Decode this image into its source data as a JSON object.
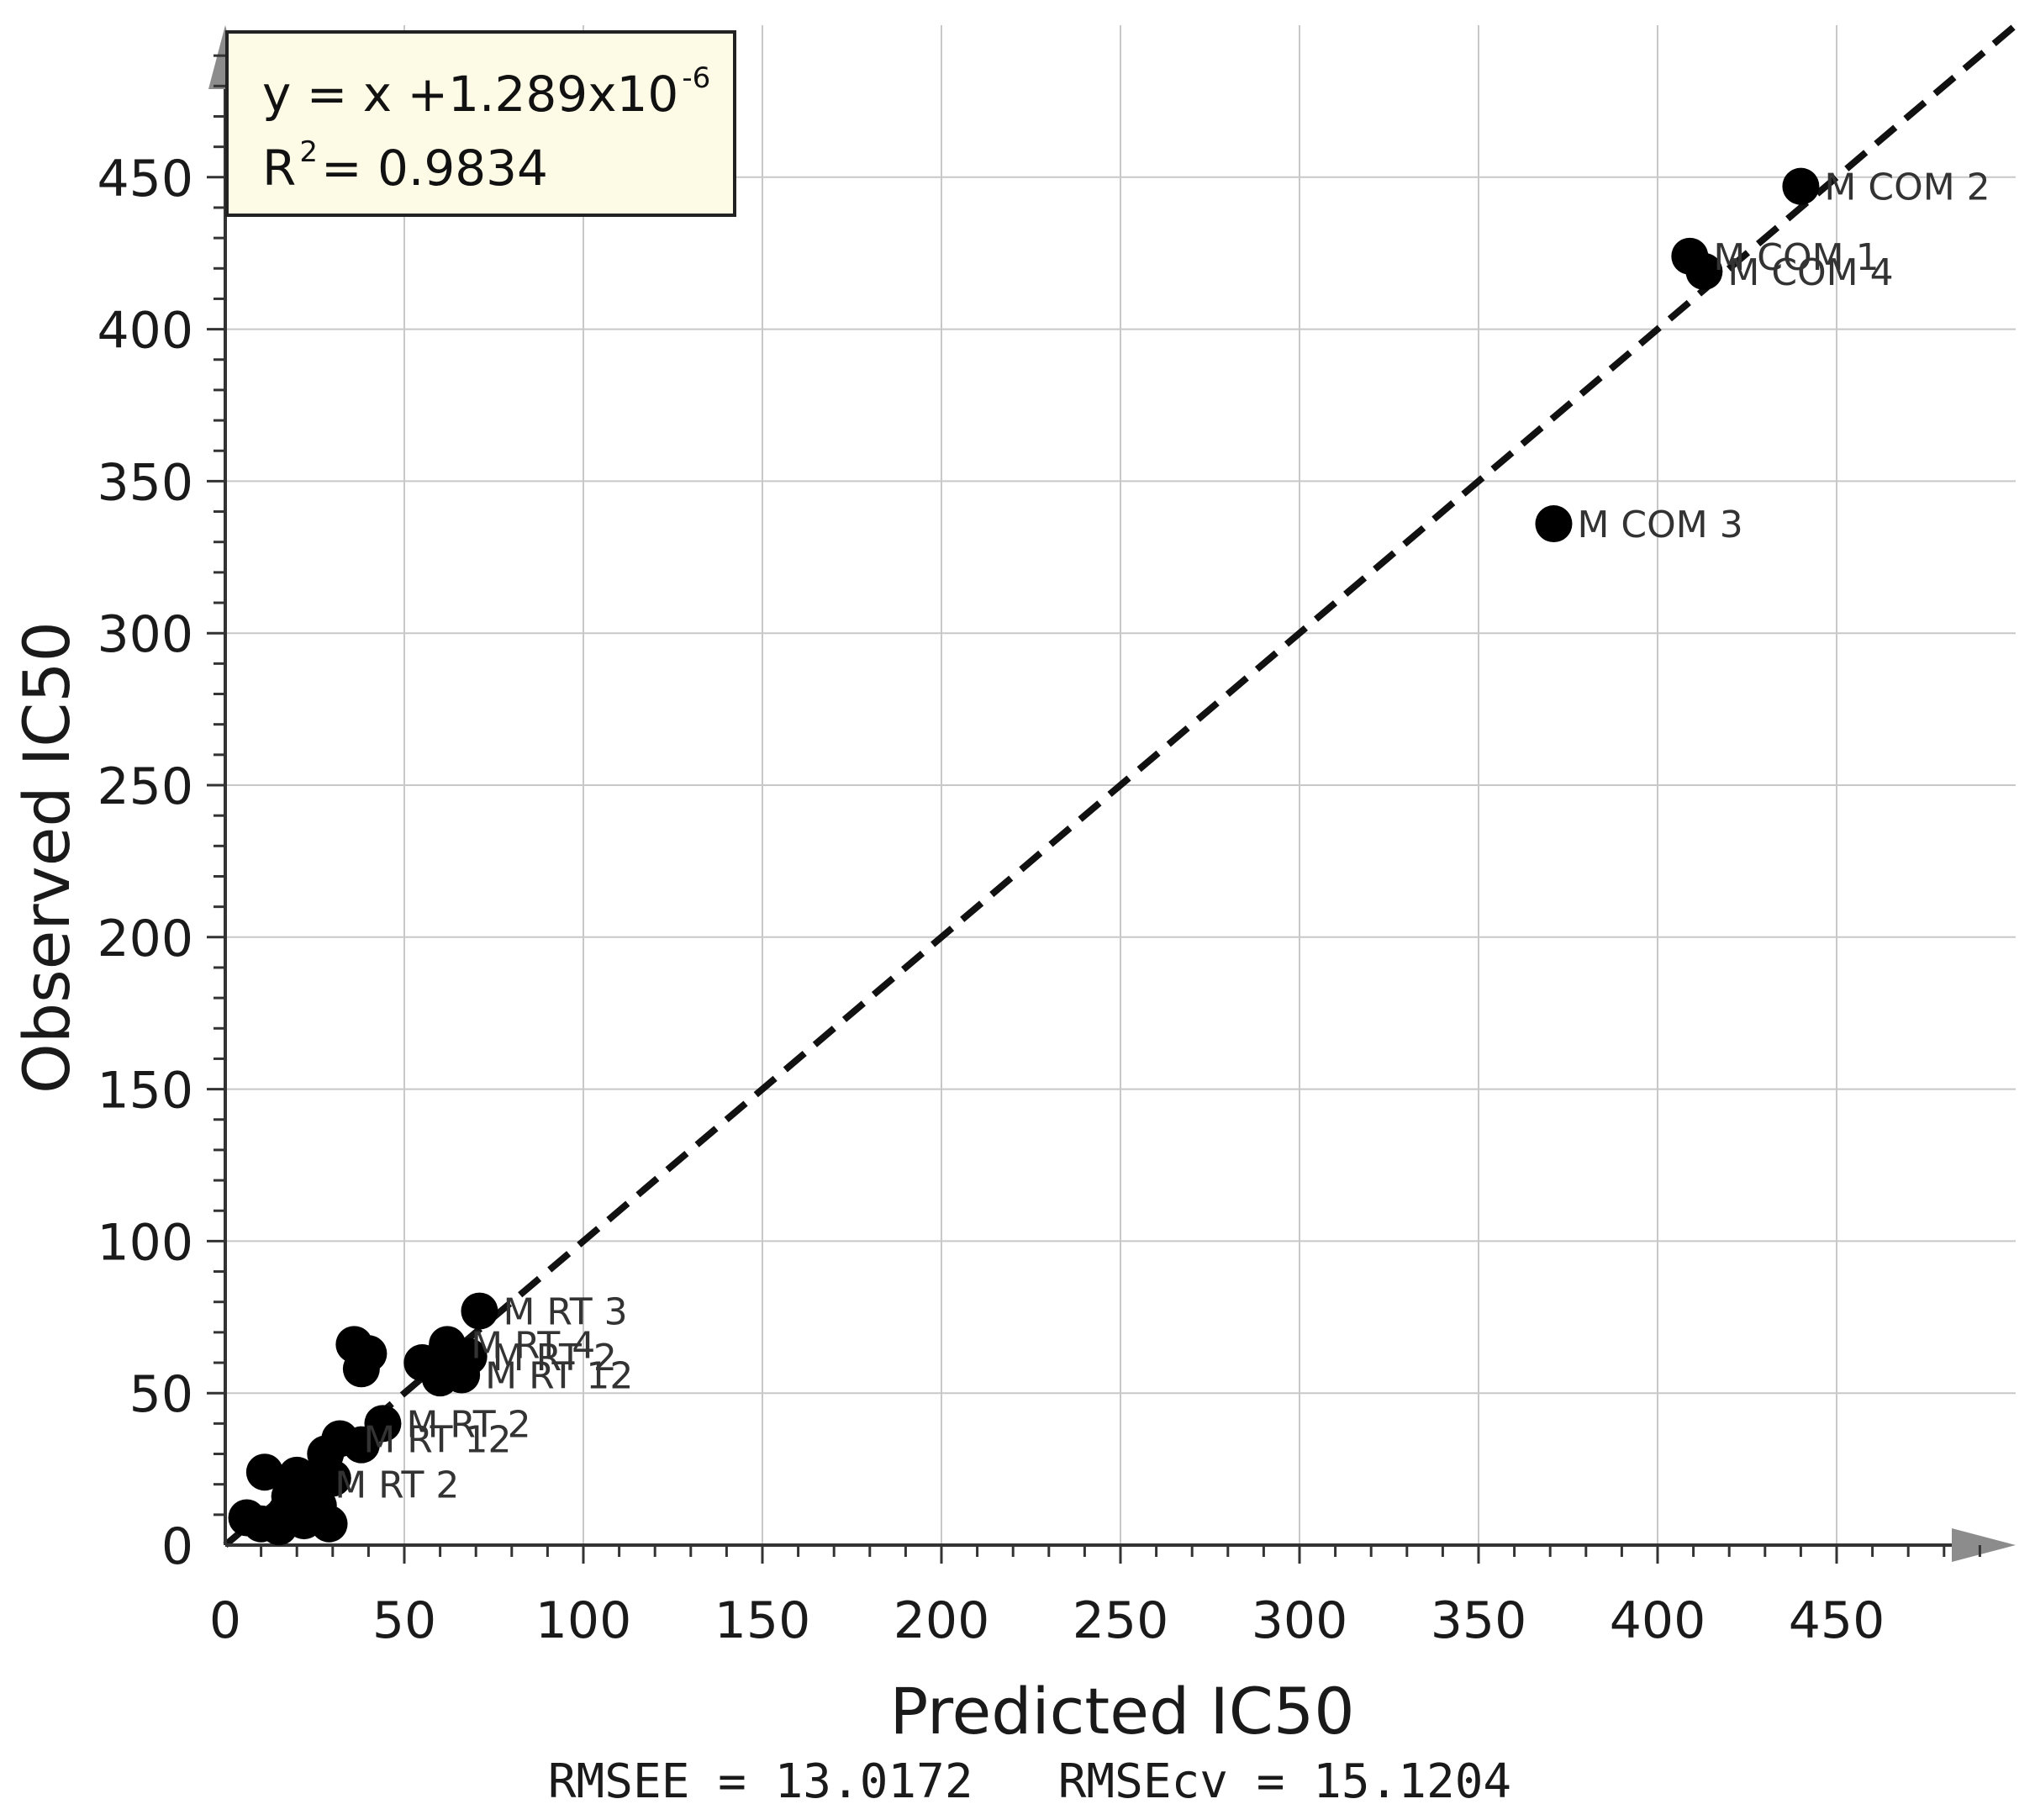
{
  "chart_data": {
    "type": "scatter",
    "xlabel": "Predicted  IC50",
    "ylabel": "Observed  IC50",
    "xlim": [
      0,
      500
    ],
    "ylim": [
      0,
      500
    ],
    "x_ticks": [
      0,
      50,
      100,
      150,
      200,
      250,
      300,
      350,
      400,
      450
    ],
    "y_ticks": [
      0,
      50,
      100,
      150,
      200,
      250,
      300,
      350,
      400,
      450
    ],
    "grid": true,
    "equation": {
      "line1_main": "y = x +1.289x10",
      "line1_sup": "-6",
      "line2_prefix": "R",
      "line2_sup": "2",
      "line2_rest": " = 0.9834"
    },
    "footer": "RMSEE = 13.0172   RMSEcv = 15.1204",
    "fit_line": {
      "x": [
        0,
        500
      ],
      "y": [
        0,
        500
      ]
    },
    "points": [
      {
        "x": 440,
        "y": 447,
        "label": "M COM 2"
      },
      {
        "x": 409,
        "y": 424,
        "label": "M COM 1"
      },
      {
        "x": 413,
        "y": 419,
        "label": "M COM 4"
      },
      {
        "x": 371,
        "y": 336,
        "label": "M COM 3"
      },
      {
        "x": 71,
        "y": 77,
        "label": "M RT 3"
      },
      {
        "x": 62,
        "y": 66,
        "label": "M RT 4"
      },
      {
        "x": 68,
        "y": 62,
        "label": "M RT 2"
      },
      {
        "x": 66,
        "y": 56,
        "label": "M RT 12"
      },
      {
        "x": 36,
        "y": 66,
        "label": ""
      },
      {
        "x": 40,
        "y": 63,
        "label": ""
      },
      {
        "x": 38,
        "y": 58,
        "label": ""
      },
      {
        "x": 55,
        "y": 60,
        "label": ""
      },
      {
        "x": 60,
        "y": 55,
        "label": ""
      },
      {
        "x": 44,
        "y": 40,
        "label": "M RT 2"
      },
      {
        "x": 32,
        "y": 35,
        "label": "M RT 12"
      },
      {
        "x": 38,
        "y": 33,
        "label": ""
      },
      {
        "x": 28,
        "y": 30,
        "label": ""
      },
      {
        "x": 11,
        "y": 24,
        "label": ""
      },
      {
        "x": 20,
        "y": 23,
        "label": ""
      },
      {
        "x": 24,
        "y": 20,
        "label": "M RT 2"
      },
      {
        "x": 30,
        "y": 22,
        "label": ""
      },
      {
        "x": 18,
        "y": 16,
        "label": ""
      },
      {
        "x": 26,
        "y": 13,
        "label": ""
      },
      {
        "x": 6,
        "y": 9,
        "label": ""
      },
      {
        "x": 10,
        "y": 7,
        "label": ""
      },
      {
        "x": 15,
        "y": 6,
        "label": ""
      },
      {
        "x": 22,
        "y": 8,
        "label": ""
      },
      {
        "x": 29,
        "y": 7,
        "label": ""
      },
      {
        "x": 17,
        "y": 11,
        "label": ""
      }
    ]
  }
}
